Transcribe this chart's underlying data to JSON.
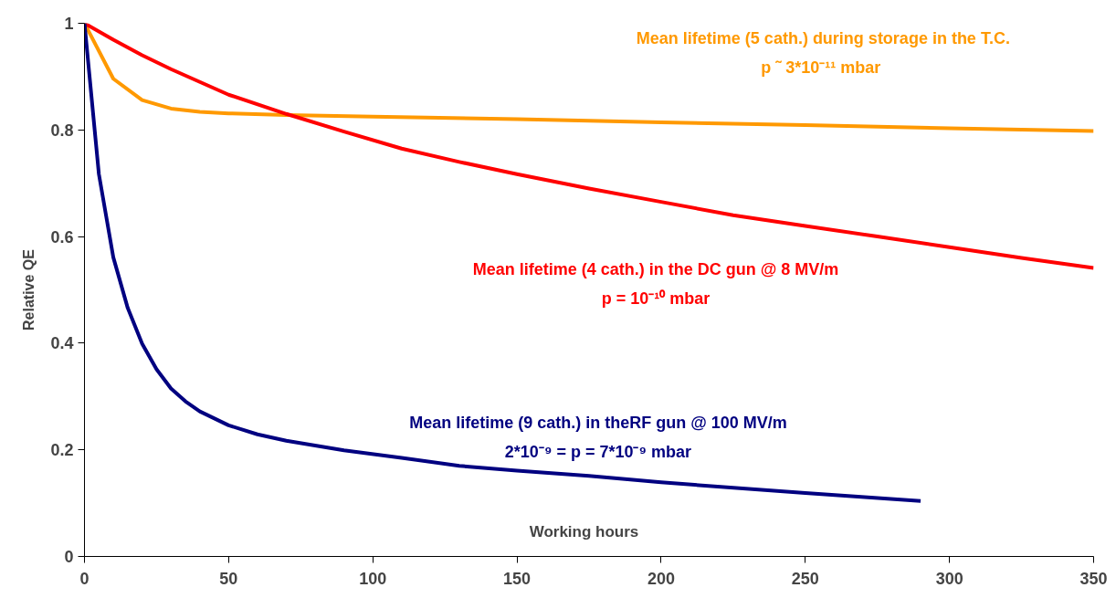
{
  "chart_data": {
    "type": "line",
    "xlabel": "Working hours",
    "ylabel": "Relative QE",
    "xlim": [
      0,
      350
    ],
    "xticks": [
      0,
      50,
      100,
      150,
      200,
      250,
      300,
      350
    ],
    "ylim": [
      0,
      1
    ],
    "yticks": [
      0,
      0.2,
      0.4,
      0.6,
      0.8,
      1
    ],
    "grid": false,
    "legend": false,
    "marker": "none",
    "line_style": "solid",
    "series": [
      {
        "name": "Mean lifetime (5 cath.) during storage in the T.C.\np ˜  3*10⁻¹¹ mbar",
        "color": "#ff9900",
        "x": [
          0,
          10,
          20,
          30,
          40,
          50,
          70,
          100,
          150,
          200,
          250,
          300,
          350
        ],
        "values": [
          1,
          0.896,
          0.856,
          0.84,
          0.834,
          0.831,
          0.828,
          0.825,
          0.82,
          0.814,
          0.809,
          0.803,
          0.798
        ]
      },
      {
        "name": "Mean lifetime (4 cath.) in the DC gun @ 8 MV/m\np = 10⁻¹⁰ mbar",
        "color": "#ff0000",
        "x": [
          0,
          10,
          20,
          30,
          40,
          50,
          70,
          90,
          110,
          130,
          150,
          175,
          200,
          225,
          250,
          275,
          300,
          325,
          350
        ],
        "values": [
          1,
          0.969,
          0.94,
          0.914,
          0.89,
          0.866,
          0.83,
          0.797,
          0.765,
          0.74,
          0.717,
          0.69,
          0.665,
          0.64,
          0.62,
          0.6,
          0.58,
          0.56,
          0.541
        ]
      },
      {
        "name": "Mean lifetime (9 cath.) in theRF gun @ 100 MV/m\n2*10⁻⁹ = p = 7*10⁻⁹ mbar",
        "color": "#000080",
        "x": [
          0,
          5,
          10,
          15,
          20,
          25,
          30,
          35,
          40,
          50,
          60,
          70,
          90,
          110,
          130,
          150,
          175,
          200,
          250,
          290
        ],
        "values": [
          1,
          0.717,
          0.561,
          0.466,
          0.399,
          0.351,
          0.315,
          0.291,
          0.272,
          0.246,
          0.229,
          0.217,
          0.199,
          0.185,
          0.17,
          0.161,
          0.151,
          0.139,
          0.119,
          0.104
        ]
      }
    ]
  }
}
